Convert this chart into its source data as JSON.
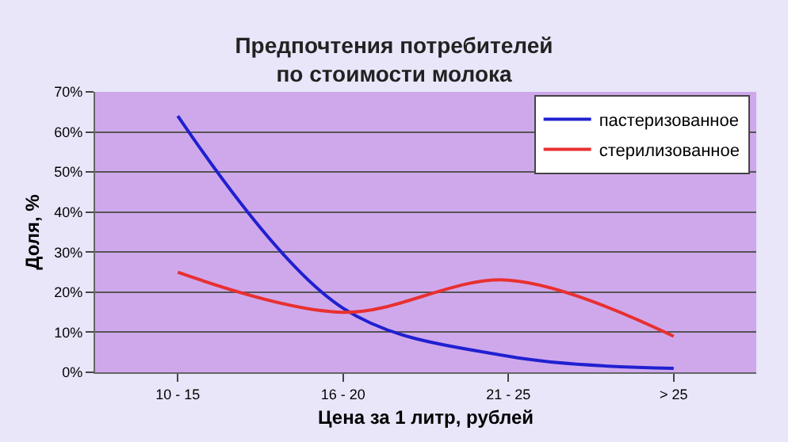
{
  "chart_data": {
    "type": "line",
    "title": "Предпочтения потребителей\nпо стоимости молока",
    "xlabel": "Цена за 1 литр, рублей",
    "ylabel": "Доля, %",
    "categories": [
      "10 - 15",
      "16 - 20",
      "21 - 25",
      "> 25"
    ],
    "series": [
      {
        "name": "пастеризованное",
        "color": "#2020d0",
        "values": [
          64,
          16,
          4,
          1
        ]
      },
      {
        "name": "стерилизованное",
        "color": "#e83030",
        "values": [
          25,
          15,
          23,
          9
        ]
      }
    ],
    "ylim": [
      0,
      70
    ],
    "yticks": [
      {
        "value": 0,
        "label": "0%"
      },
      {
        "value": 10,
        "label": "10%"
      },
      {
        "value": 20,
        "label": "20%"
      },
      {
        "value": 30,
        "label": "30%"
      },
      {
        "value": 40,
        "label": "40%"
      },
      {
        "value": 50,
        "label": "50%"
      },
      {
        "value": 60,
        "label": "60%"
      },
      {
        "value": 70,
        "label": "70%"
      }
    ],
    "grid": "y",
    "legend": "top right",
    "marker": "none",
    "line_style": "solid"
  }
}
